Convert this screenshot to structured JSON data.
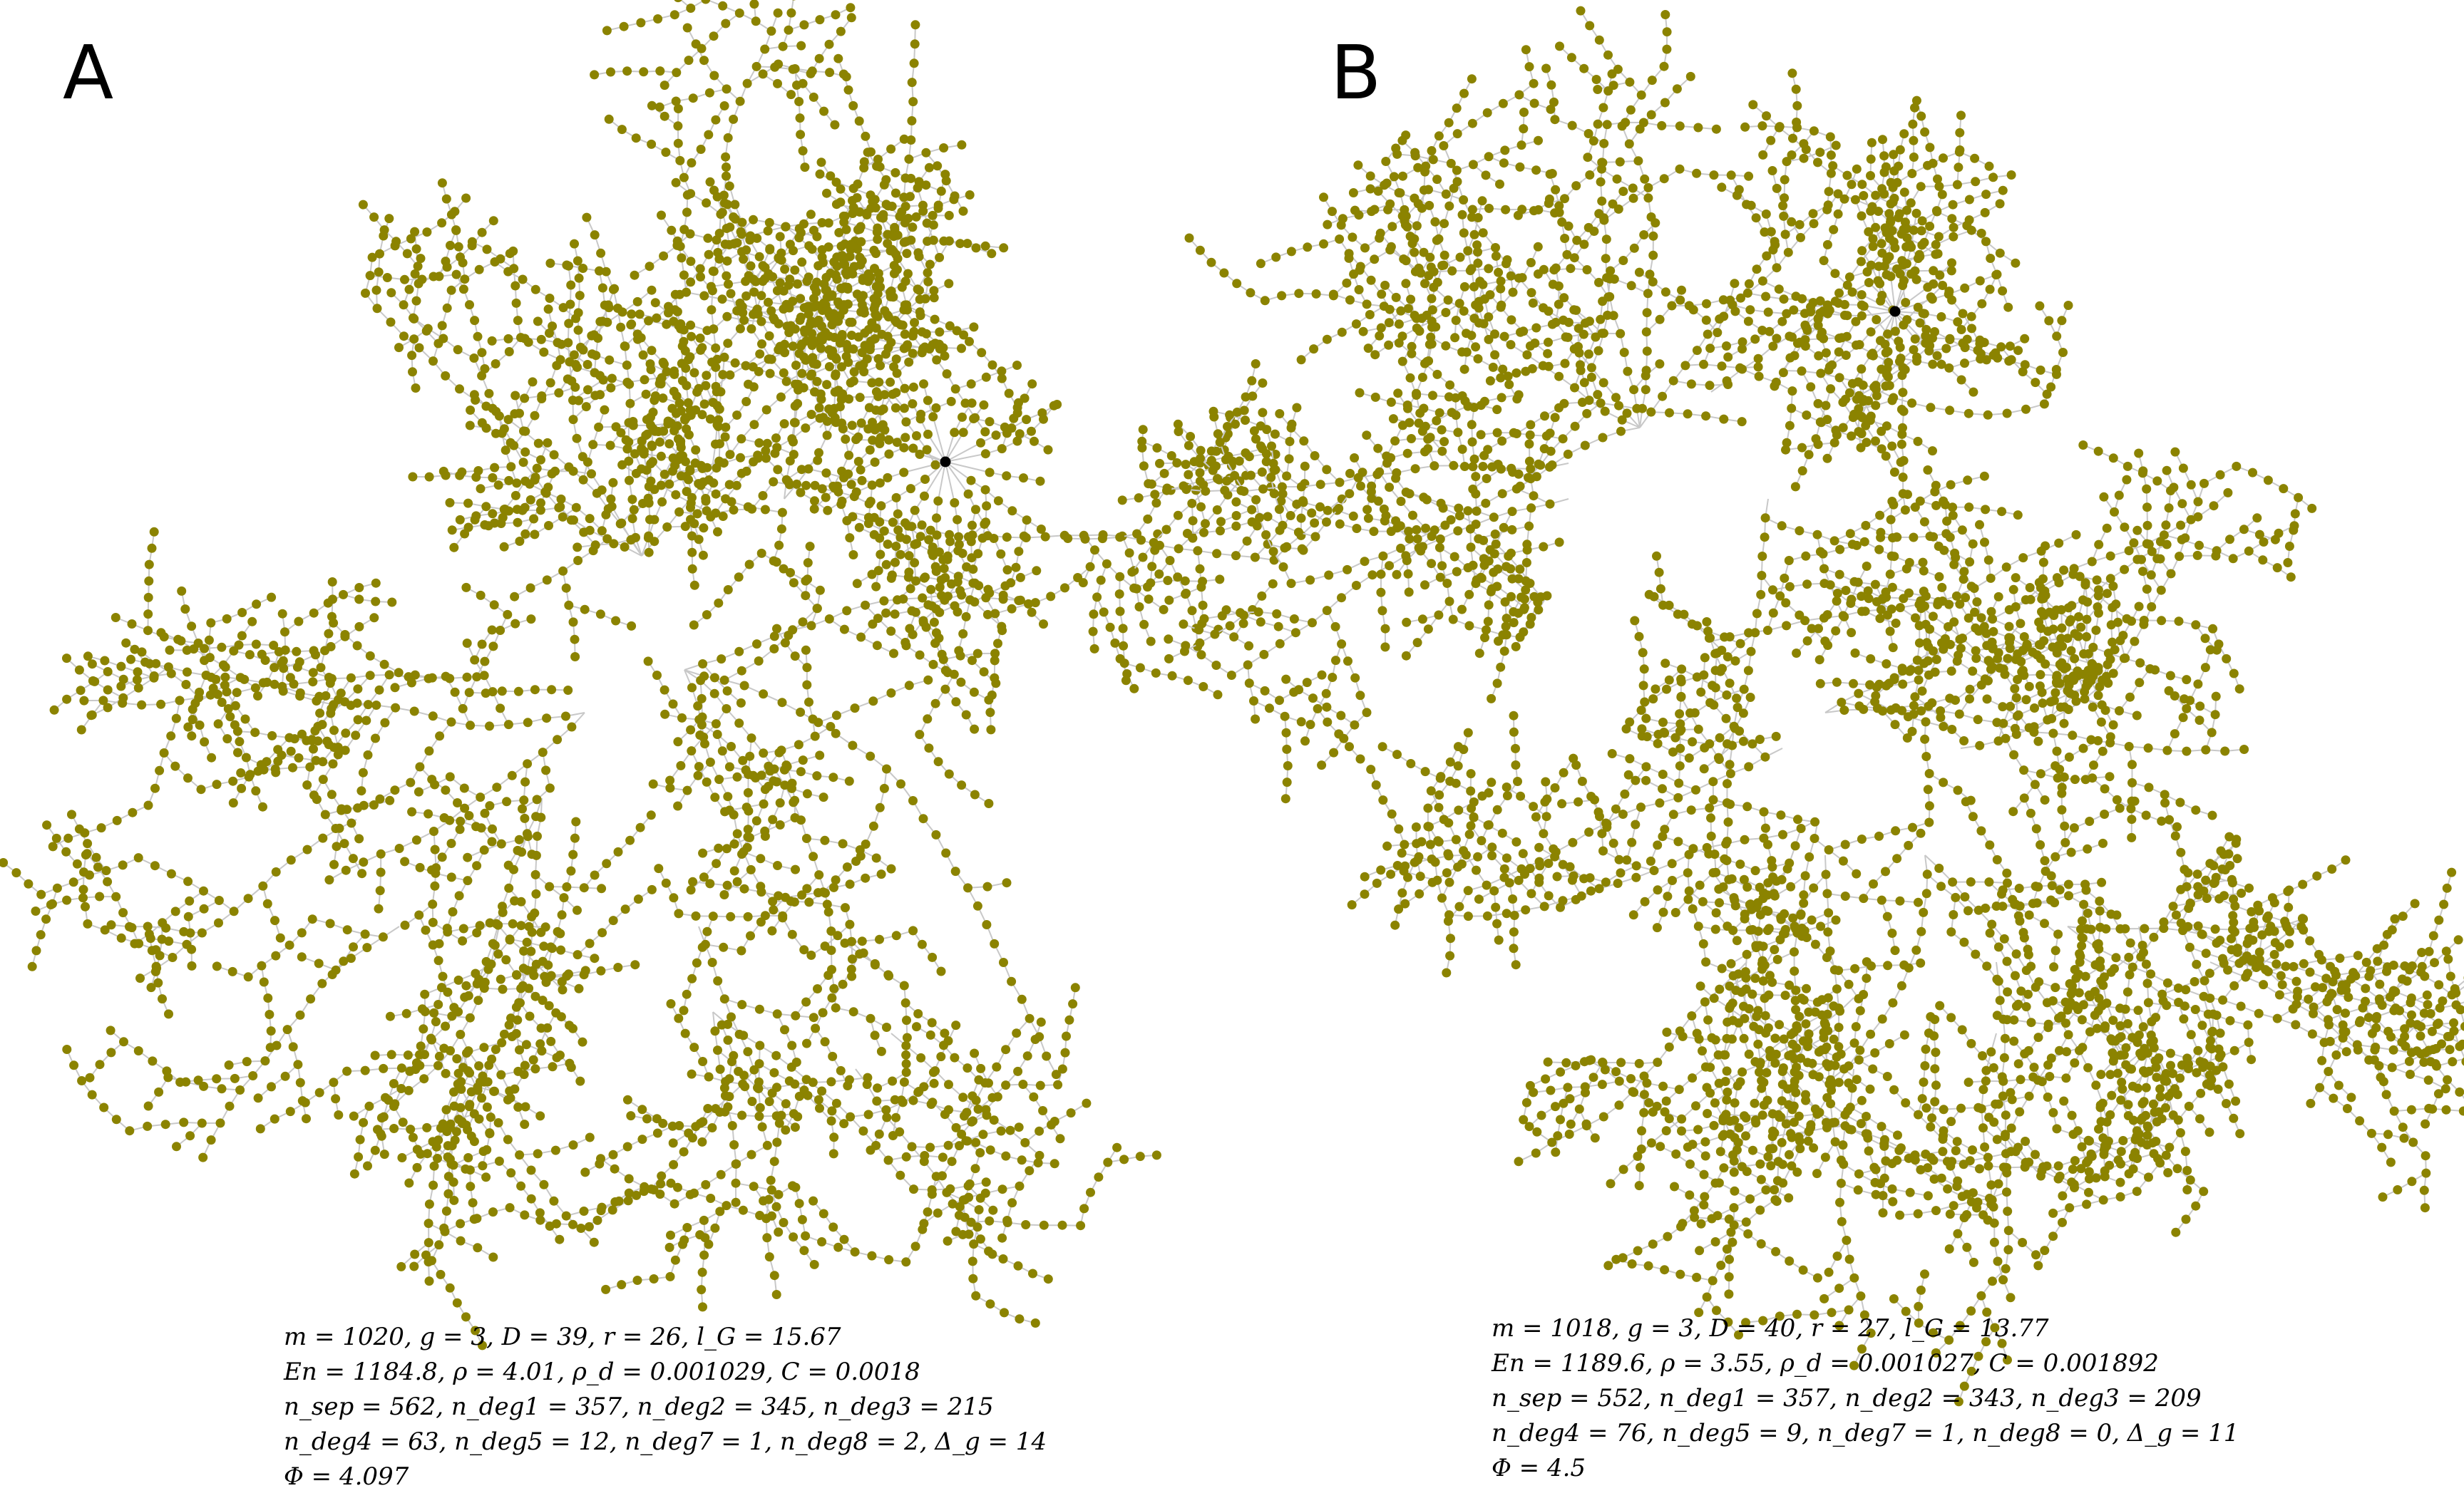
{
  "colors": {
    "node": "#8b8300",
    "edge": "#c8c8c8",
    "hub": "#000000"
  },
  "panels": [
    {
      "letter": "A",
      "stats": [
        "m = 1020, g = 3, D = 39, r = 26, l_G = 15.67",
        "En = 1184.8, ρ = 4.01, ρ_d = 0.001029, C = 0.0018",
        "n_sep = 562, n_deg1 = 357, n_deg2 = 345, n_deg3 = 215",
        "n_deg4 = 63, n_deg5 = 12, n_deg7 = 1, n_deg8 = 2, Δ_g = 14",
        "Φ = 4.097"
      ]
    },
    {
      "letter": "B",
      "stats": [
        "m = 1018, g = 3, D = 40, r = 27, l_G = 13.77",
        "En = 1189.6, ρ = 3.55, ρ_d = 0.001027, C = 0.001892",
        "n_sep = 552, n_deg1 = 357, n_deg2 = 343, n_deg3 = 209",
        "n_deg4 = 76, n_deg5 = 9, n_deg7 = 1, n_deg8 = 0, Δ_g = 11",
        "Φ = 4.5"
      ]
    }
  ]
}
